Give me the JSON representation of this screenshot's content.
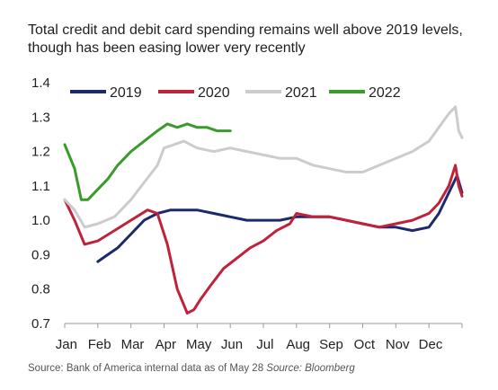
{
  "chart_title": "Total credit and debit card spending remains well above 2019 levels, though has been easing lower very recently",
  "source_text": "Source: Bank of America internal data as of May 28",
  "source_italic": "Source: Bloomberg",
  "chart_data": {
    "type": "line",
    "title": "Total credit and debit card spending remains well above 2019 levels, though has been easing lower very recently",
    "xlabel": "",
    "ylabel": "",
    "x_tick_labels": [
      "Jan",
      "Feb",
      "Mar",
      "Apr",
      "May",
      "Jun",
      "Jul",
      "Aug",
      "Sep",
      "Oct",
      "Nov",
      "Dec"
    ],
    "y_tick_labels": [
      "0.7",
      "0.8",
      "0.9",
      "1.0",
      "1.1",
      "1.2",
      "1.3",
      "1.4"
    ],
    "ylim": [
      0.7,
      1.4
    ],
    "xlim": [
      0,
      12
    ],
    "grid": false,
    "legend_position": "top",
    "series": [
      {
        "name": "2019",
        "color": "#1a2a6c",
        "x": [
          1.0,
          1.3,
          1.6,
          2.0,
          2.4,
          2.8,
          3.2,
          3.6,
          4.0,
          4.5,
          5.0,
          5.5,
          6.0,
          6.5,
          7.0,
          7.5,
          8.0,
          8.5,
          9.0,
          9.5,
          10.0,
          10.5,
          11.0,
          11.3,
          11.6,
          11.85,
          12.0
        ],
        "y": [
          0.88,
          0.9,
          0.92,
          0.96,
          1.0,
          1.02,
          1.03,
          1.03,
          1.03,
          1.02,
          1.01,
          1.0,
          1.0,
          1.0,
          1.01,
          1.01,
          1.01,
          1.0,
          0.99,
          0.98,
          0.98,
          0.97,
          0.98,
          1.02,
          1.08,
          1.13,
          1.08
        ]
      },
      {
        "name": "2020",
        "color": "#c0223b",
        "x": [
          0.0,
          0.3,
          0.6,
          1.0,
          1.5,
          2.0,
          2.5,
          2.8,
          3.1,
          3.4,
          3.7,
          3.9,
          4.1,
          4.4,
          4.8,
          5.2,
          5.6,
          6.0,
          6.4,
          6.8,
          7.0,
          7.5,
          8.0,
          8.5,
          9.0,
          9.5,
          10.0,
          10.5,
          11.0,
          11.3,
          11.6,
          11.8,
          11.9,
          12.0
        ],
        "y": [
          1.06,
          1.0,
          0.93,
          0.94,
          0.97,
          1.0,
          1.03,
          1.02,
          0.93,
          0.8,
          0.73,
          0.74,
          0.77,
          0.81,
          0.86,
          0.89,
          0.92,
          0.94,
          0.97,
          0.99,
          1.02,
          1.01,
          1.01,
          1.0,
          0.99,
          0.98,
          0.99,
          1.0,
          1.02,
          1.05,
          1.1,
          1.16,
          1.1,
          1.07
        ]
      },
      {
        "name": "2021",
        "color": "#cccccc",
        "x": [
          0.0,
          0.3,
          0.6,
          1.0,
          1.5,
          2.0,
          2.4,
          2.8,
          3.0,
          3.3,
          3.6,
          4.0,
          4.5,
          5.0,
          5.5,
          6.0,
          6.5,
          7.0,
          7.5,
          8.0,
          8.5,
          9.0,
          9.5,
          10.0,
          10.5,
          11.0,
          11.3,
          11.6,
          11.8,
          11.9,
          12.0
        ],
        "y": [
          1.06,
          1.03,
          0.98,
          0.99,
          1.01,
          1.06,
          1.11,
          1.16,
          1.21,
          1.22,
          1.23,
          1.21,
          1.2,
          1.21,
          1.2,
          1.19,
          1.18,
          1.18,
          1.16,
          1.15,
          1.14,
          1.14,
          1.16,
          1.18,
          1.2,
          1.23,
          1.27,
          1.31,
          1.33,
          1.26,
          1.24
        ]
      },
      {
        "name": "2022",
        "color": "#3a9a2c",
        "x": [
          0.0,
          0.3,
          0.5,
          0.7,
          1.0,
          1.3,
          1.6,
          2.0,
          2.4,
          2.8,
          3.1,
          3.4,
          3.7,
          4.0,
          4.3,
          4.6,
          5.0
        ],
        "y": [
          1.22,
          1.15,
          1.06,
          1.06,
          1.09,
          1.12,
          1.16,
          1.2,
          1.23,
          1.26,
          1.28,
          1.27,
          1.28,
          1.27,
          1.27,
          1.26,
          1.26
        ]
      }
    ]
  }
}
